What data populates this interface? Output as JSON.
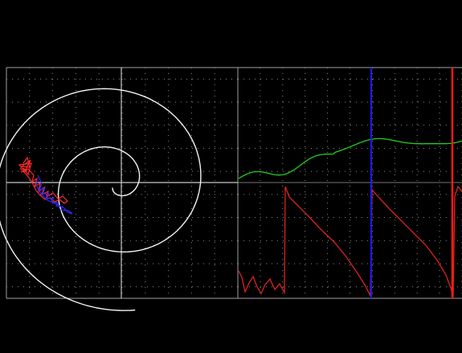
{
  "colors": {
    "background": "#000000",
    "grid_dots": "#8a8a8a",
    "frame": "#a0a0a0",
    "crosshair": "#c8c8c8",
    "spiral": "#f2f2f2",
    "trail_red": "#ff2a2a",
    "trail_blue": "#2a2aff",
    "trace_green": "#22cc22",
    "trace_red": "#dd2222",
    "marker_blue": "#1a1aff",
    "marker_red": "#ff1a1a"
  },
  "panels": {
    "left": {
      "name": "phase-plot",
      "grid": true
    },
    "right": {
      "name": "time-traces",
      "grid": true
    }
  },
  "icons": {
    "marker_blue": "vertical-line",
    "marker_red": "vertical-line"
  }
}
